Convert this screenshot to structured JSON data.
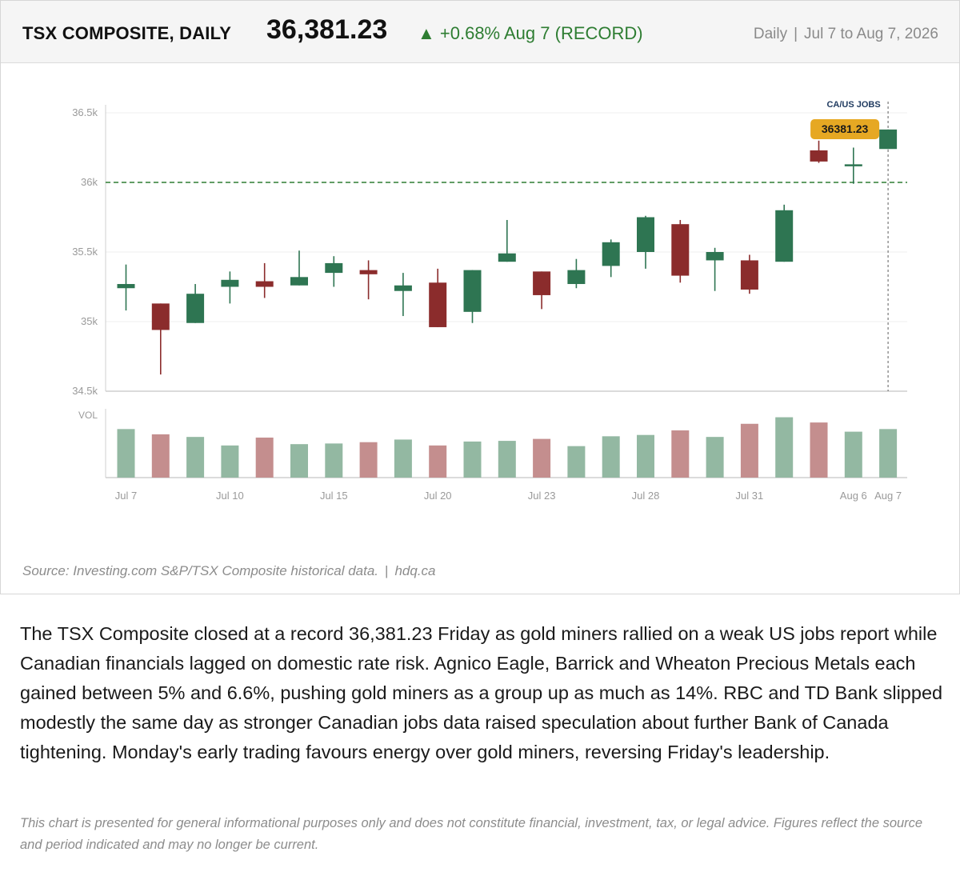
{
  "header": {
    "title": "TSX COMPOSITE, DAILY",
    "price": "36,381.23",
    "change": "▲ +0.68% Aug 7 (RECORD)",
    "frequency": "Daily",
    "separator": "|",
    "date_range": "Jul 7 to Aug 7, 2026"
  },
  "colors": {
    "up": "#2e7552",
    "down": "#8b2c2c",
    "up_volume": "#93b8a2",
    "down_volume": "#c48e8e",
    "reference_line": "#2e7d32",
    "badge": "#e6a823",
    "change_text": "#2e7d32"
  },
  "chart_data": {
    "type": "candlestick",
    "title": "",
    "xlabel": "",
    "ylabel": "",
    "ylim": [
      34500,
      36500
    ],
    "yticks": [
      34500,
      35000,
      35500,
      36000,
      36500
    ],
    "ytick_labels": [
      "34.5k",
      "35k",
      "35.5k",
      "36k",
      "36.5k"
    ],
    "volume_label": "VOL",
    "grid": true,
    "reference_line": {
      "value": 36000,
      "style": "dashed"
    },
    "annotation": {
      "label": "CA/US JOBS",
      "date": "Aug 7"
    },
    "last_price_label": "36381.23",
    "x_tick_labels": [
      {
        "index": 0,
        "label": "Jul 7"
      },
      {
        "index": 3,
        "label": "Jul 10"
      },
      {
        "index": 6,
        "label": "Jul 15"
      },
      {
        "index": 9,
        "label": "Jul 20"
      },
      {
        "index": 12,
        "label": "Jul 23"
      },
      {
        "index": 15,
        "label": "Jul 28"
      },
      {
        "index": 18,
        "label": "Jul 31"
      },
      {
        "index": 21,
        "label": "Aug 6"
      },
      {
        "index": 22,
        "label": "Aug 7"
      }
    ],
    "candles": [
      {
        "open": 35240,
        "high": 35410,
        "low": 35080,
        "close": 35270,
        "volume": 0.74
      },
      {
        "open": 35130,
        "high": 35130,
        "low": 34620,
        "close": 34940,
        "volume": 0.66
      },
      {
        "open": 34990,
        "high": 35270,
        "low": 34990,
        "close": 35200,
        "volume": 0.62
      },
      {
        "open": 35250,
        "high": 35360,
        "low": 35130,
        "close": 35300,
        "volume": 0.49
      },
      {
        "open": 35290,
        "high": 35420,
        "low": 35170,
        "close": 35250,
        "volume": 0.61
      },
      {
        "open": 35260,
        "high": 35510,
        "low": 35260,
        "close": 35320,
        "volume": 0.51
      },
      {
        "open": 35350,
        "high": 35470,
        "low": 35250,
        "close": 35420,
        "volume": 0.52
      },
      {
        "open": 35370,
        "high": 35440,
        "low": 35160,
        "close": 35340,
        "volume": 0.54
      },
      {
        "open": 35220,
        "high": 35350,
        "low": 35040,
        "close": 35260,
        "volume": 0.58
      },
      {
        "open": 35280,
        "high": 35380,
        "low": 34960,
        "close": 34960,
        "volume": 0.49
      },
      {
        "open": 35070,
        "high": 35370,
        "low": 34990,
        "close": 35370,
        "volume": 0.55
      },
      {
        "open": 35430,
        "high": 35730,
        "low": 35430,
        "close": 35490,
        "volume": 0.56
      },
      {
        "open": 35360,
        "high": 35360,
        "low": 35090,
        "close": 35190,
        "volume": 0.59
      },
      {
        "open": 35270,
        "high": 35450,
        "low": 35240,
        "close": 35370,
        "volume": 0.48
      },
      {
        "open": 35400,
        "high": 35590,
        "low": 35320,
        "close": 35570,
        "volume": 0.63
      },
      {
        "open": 35500,
        "high": 35760,
        "low": 35380,
        "close": 35750,
        "volume": 0.65
      },
      {
        "open": 35700,
        "high": 35730,
        "low": 35280,
        "close": 35330,
        "volume": 0.72
      },
      {
        "open": 35440,
        "high": 35530,
        "low": 35220,
        "close": 35500,
        "volume": 0.62
      },
      {
        "open": 35440,
        "high": 35480,
        "low": 35200,
        "close": 35230,
        "volume": 0.82
      },
      {
        "open": 35430,
        "high": 35840,
        "low": 35430,
        "close": 35800,
        "volume": 0.92
      },
      {
        "open": 36230,
        "high": 36300,
        "low": 36140,
        "close": 36150,
        "volume": 0.84
      },
      {
        "open": 36130,
        "high": 36250,
        "low": 35990,
        "close": 36130,
        "volume": 0.7
      },
      {
        "open": 36240,
        "high": 36380,
        "low": 36240,
        "close": 36380,
        "volume": 0.74
      }
    ]
  },
  "footer": {
    "source": "Source: Investing.com S&P/TSX Composite historical data.",
    "separator": "|",
    "site": "hdq.ca"
  },
  "article": {
    "text": "The TSX Composite closed at a record 36,381.23 Friday as gold miners rallied on a weak US jobs report while Canadian financials lagged on domestic rate risk. Agnico Eagle, Barrick and Wheaton Precious Metals each gained between 5% and 6.6%, pushing gold miners as a group up as much as 14%. RBC and TD Bank slipped modestly the same day as stronger Canadian jobs data raised speculation about further Bank of Canada tightening. Monday's early trading favours energy over gold miners, reversing Friday's leadership.",
    "disclaimer": "This chart is presented for general informational purposes only and does not constitute financial, investment, tax, or legal advice. Figures reflect the source and period indicated and may no longer be current."
  }
}
